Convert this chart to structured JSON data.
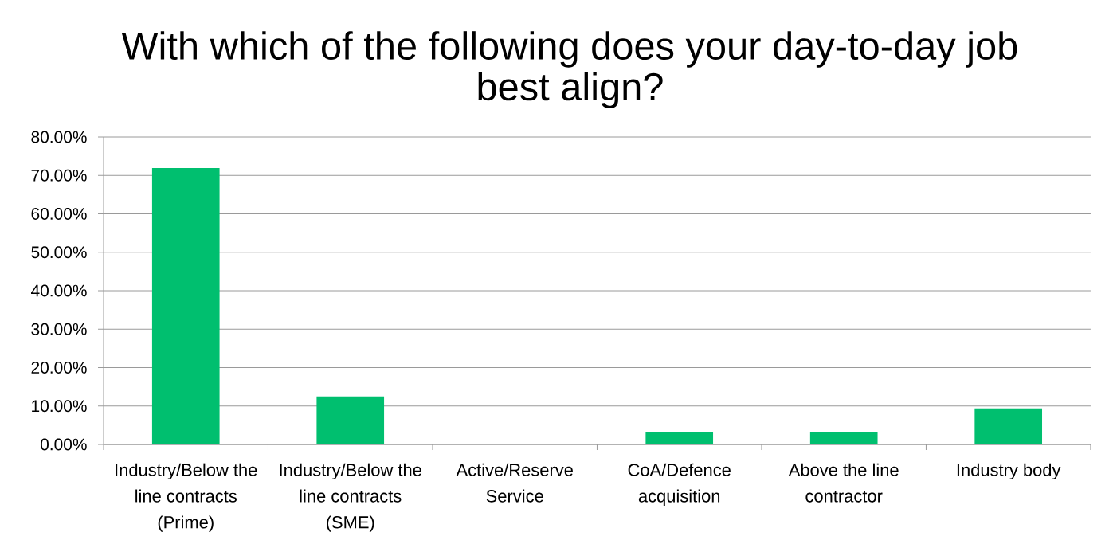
{
  "chart_data": {
    "type": "bar",
    "title": "With which of the following does your day-to-day job best align?",
    "categories": [
      "Industry/Below the line contracts (Prime)",
      "Industry/Below the line contracts (SME)",
      "Active/Reserve Service",
      "CoA/Defence acquisition",
      "Above the line contractor",
      "Industry body"
    ],
    "values": [
      71.9,
      12.5,
      0,
      3.1,
      3.1,
      9.4
    ],
    "color": "#00bf6f",
    "ylim": [
      0,
      80
    ],
    "yticks": [
      {
        "value": 0,
        "label": "0.00%"
      },
      {
        "value": 10,
        "label": "10.00%"
      },
      {
        "value": 20,
        "label": "20.00%"
      },
      {
        "value": 30,
        "label": "30.00%"
      },
      {
        "value": 40,
        "label": "40.00%"
      },
      {
        "value": 50,
        "label": "50.00%"
      },
      {
        "value": 60,
        "label": "60.00%"
      },
      {
        "value": 70,
        "label": "70.00%"
      },
      {
        "value": 80,
        "label": "80.00%"
      }
    ],
    "grid": "y"
  }
}
